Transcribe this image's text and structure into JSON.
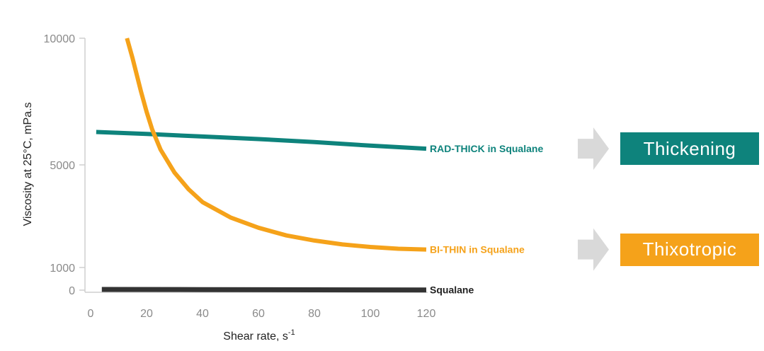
{
  "chart_data": {
    "type": "line",
    "title": "",
    "xlabel": "Shear rate, s",
    "xlabel_superscript": "-1",
    "ylabel": "Viscosity at 25°C, mPa.s",
    "xlim": [
      0,
      120
    ],
    "ylim": [
      0,
      10000
    ],
    "x_ticks": [
      "0",
      "20",
      "40",
      "60",
      "80",
      "100",
      "120"
    ],
    "y_ticks": [
      "10000",
      "5000",
      "1000",
      "0"
    ],
    "y_tick_values": [
      10000,
      5000,
      1000,
      0
    ],
    "grid": false,
    "series": [
      {
        "name": "RAD-THICK in Squalane",
        "color": "#0e837c",
        "points": [
          [
            2,
            6300
          ],
          [
            20,
            6220
          ],
          [
            40,
            6120
          ],
          [
            60,
            6020
          ],
          [
            80,
            5900
          ],
          [
            100,
            5760
          ],
          [
            120,
            5640
          ]
        ]
      },
      {
        "name": "BI-THIN in Squalane",
        "color": "#f5a21a",
        "points": [
          [
            13,
            10000
          ],
          [
            15,
            9200
          ],
          [
            18,
            7900
          ],
          [
            20,
            7100
          ],
          [
            22,
            6400
          ],
          [
            25,
            5600
          ],
          [
            30,
            4700
          ],
          [
            35,
            4050
          ],
          [
            40,
            3550
          ],
          [
            50,
            2950
          ],
          [
            60,
            2550
          ],
          [
            70,
            2250
          ],
          [
            80,
            2050
          ],
          [
            90,
            1900
          ],
          [
            100,
            1800
          ],
          [
            110,
            1730
          ],
          [
            120,
            1700
          ]
        ]
      },
      {
        "name": "Squalane",
        "color": "#333333",
        "points": [
          [
            4,
            30
          ],
          [
            40,
            25
          ],
          [
            80,
            15
          ],
          [
            120,
            10
          ]
        ]
      }
    ]
  },
  "callouts": [
    {
      "label": "Thickening",
      "color": "#0e837c"
    },
    {
      "label": "Thixotropic",
      "color": "#f5a21a"
    }
  ],
  "arrow_color": "#d9d9d9"
}
